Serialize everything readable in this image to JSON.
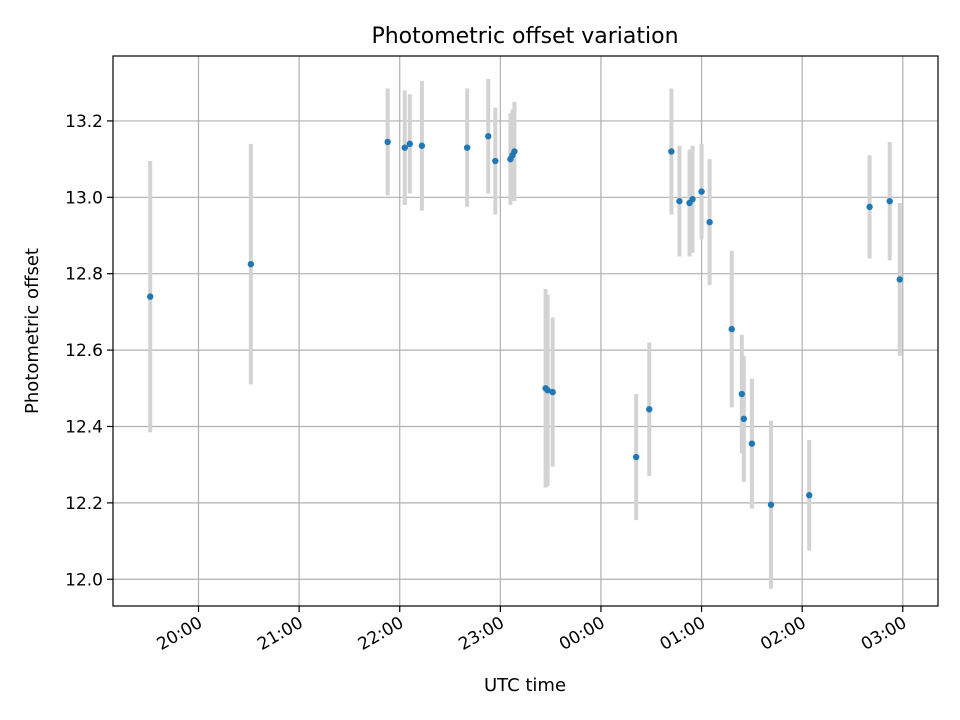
{
  "chart_data": {
    "type": "scatter",
    "title": "Photometric offset variation",
    "xlabel": "UTC time",
    "ylabel": "Photometric offset",
    "x_range_hours": [
      19.15,
      27.35
    ],
    "ylim": [
      11.93,
      13.37
    ],
    "grid": true,
    "x_ticks": [
      {
        "value": 20,
        "label": "20:00"
      },
      {
        "value": 21,
        "label": "21:00"
      },
      {
        "value": 22,
        "label": "22:00"
      },
      {
        "value": 23,
        "label": "23:00"
      },
      {
        "value": 24,
        "label": "00:00"
      },
      {
        "value": 25,
        "label": "01:00"
      },
      {
        "value": 26,
        "label": "02:00"
      },
      {
        "value": 27,
        "label": "03:00"
      }
    ],
    "y_ticks": [
      {
        "value": 12.0,
        "label": "12.0"
      },
      {
        "value": 12.2,
        "label": "12.2"
      },
      {
        "value": 12.4,
        "label": "12.4"
      },
      {
        "value": 12.6,
        "label": "12.6"
      },
      {
        "value": 12.8,
        "label": "12.8"
      },
      {
        "value": 13.0,
        "label": "13.0"
      },
      {
        "value": 13.2,
        "label": "13.2"
      }
    ],
    "colors": {
      "marker": "#1f77b4",
      "errorbar": "#d3d3d3",
      "grid": "#b0b0b0"
    },
    "points": [
      {
        "x": 19.52,
        "y": 12.74,
        "err": 0.355
      },
      {
        "x": 20.52,
        "y": 12.825,
        "err": 0.315
      },
      {
        "x": 21.88,
        "y": 13.145,
        "err": 0.14
      },
      {
        "x": 22.05,
        "y": 13.13,
        "err": 0.15
      },
      {
        "x": 22.1,
        "y": 13.14,
        "err": 0.13
      },
      {
        "x": 22.22,
        "y": 13.135,
        "err": 0.17
      },
      {
        "x": 22.67,
        "y": 13.13,
        "err": 0.155
      },
      {
        "x": 22.88,
        "y": 13.16,
        "err": 0.15
      },
      {
        "x": 22.95,
        "y": 13.095,
        "err": 0.14
      },
      {
        "x": 23.1,
        "y": 13.1,
        "err": 0.12
      },
      {
        "x": 23.12,
        "y": 13.11,
        "err": 0.12
      },
      {
        "x": 23.14,
        "y": 13.12,
        "err": 0.13
      },
      {
        "x": 23.45,
        "y": 12.5,
        "err": 0.26
      },
      {
        "x": 23.47,
        "y": 12.495,
        "err": 0.25
      },
      {
        "x": 23.52,
        "y": 12.49,
        "err": 0.195
      },
      {
        "x": 24.35,
        "y": 12.32,
        "err": 0.165
      },
      {
        "x": 24.48,
        "y": 12.445,
        "err": 0.175
      },
      {
        "x": 24.7,
        "y": 13.12,
        "err": 0.165
      },
      {
        "x": 24.78,
        "y": 12.99,
        "err": 0.145
      },
      {
        "x": 24.88,
        "y": 12.985,
        "err": 0.14
      },
      {
        "x": 24.91,
        "y": 12.995,
        "err": 0.14
      },
      {
        "x": 25.0,
        "y": 13.015,
        "err": 0.125
      },
      {
        "x": 25.08,
        "y": 12.935,
        "err": 0.165
      },
      {
        "x": 25.3,
        "y": 12.655,
        "err": 0.205
      },
      {
        "x": 25.4,
        "y": 12.485,
        "err": 0.155
      },
      {
        "x": 25.42,
        "y": 12.42,
        "err": 0.165
      },
      {
        "x": 25.5,
        "y": 12.355,
        "err": 0.17
      },
      {
        "x": 25.69,
        "y": 12.195,
        "err": 0.22
      },
      {
        "x": 26.07,
        "y": 12.22,
        "err": 0.145
      },
      {
        "x": 26.67,
        "y": 12.975,
        "err": 0.135
      },
      {
        "x": 26.87,
        "y": 12.99,
        "err": 0.155
      },
      {
        "x": 26.97,
        "y": 12.785,
        "err": 0.2
      }
    ]
  }
}
